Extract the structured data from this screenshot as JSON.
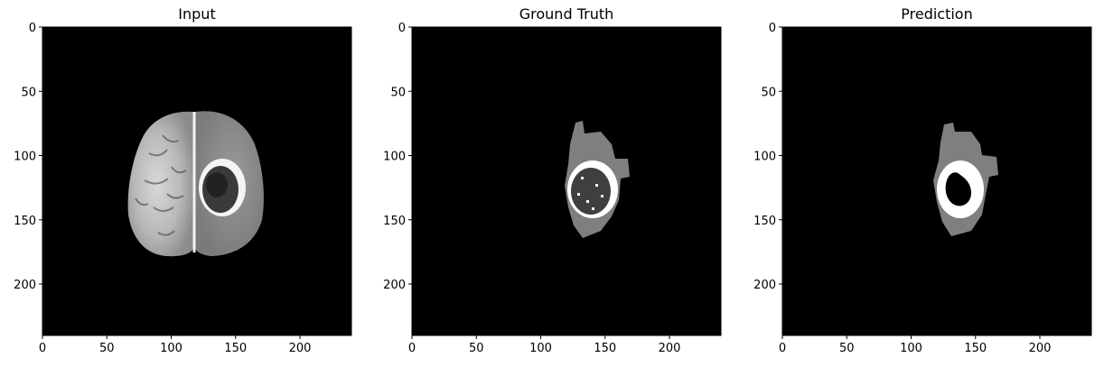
{
  "figure": {
    "panels": [
      {
        "id": "input",
        "title": "Input"
      },
      {
        "id": "ground-truth",
        "title": "Ground Truth"
      },
      {
        "id": "prediction",
        "title": "Prediction"
      }
    ]
  },
  "chart_data": [
    {
      "type": "image",
      "title": "Input",
      "content": "MRI brain slice (grayscale)",
      "xlim": [
        0,
        240
      ],
      "ylim": [
        240,
        0
      ],
      "xticks": [
        0,
        50,
        100,
        150,
        200
      ],
      "yticks": [
        0,
        50,
        100,
        150,
        200
      ],
      "colors": {
        "background": "#000000",
        "foreground": "#ffffff"
      }
    },
    {
      "type": "image",
      "title": "Ground Truth",
      "content": "segmentation mask",
      "xlim": [
        0,
        240
      ],
      "ylim": [
        240,
        0
      ],
      "xticks": [
        0,
        50,
        100,
        150,
        200
      ],
      "yticks": [
        0,
        50,
        100,
        150,
        200
      ],
      "classes": [
        {
          "value": 0,
          "color": "#000000"
        },
        {
          "value": 1,
          "color": "#7f7f7f"
        },
        {
          "value": 2,
          "color": "#ffffff"
        },
        {
          "value": 3,
          "color": "#3f3f3f"
        }
      ]
    },
    {
      "type": "image",
      "title": "Prediction",
      "content": "segmentation mask",
      "xlim": [
        0,
        240
      ],
      "ylim": [
        240,
        0
      ],
      "xticks": [
        0,
        50,
        100,
        150,
        200
      ],
      "yticks": [
        0,
        50,
        100,
        150,
        200
      ],
      "classes": [
        {
          "value": 0,
          "color": "#000000"
        },
        {
          "value": 1,
          "color": "#7f7f7f"
        },
        {
          "value": 2,
          "color": "#ffffff"
        }
      ]
    }
  ]
}
